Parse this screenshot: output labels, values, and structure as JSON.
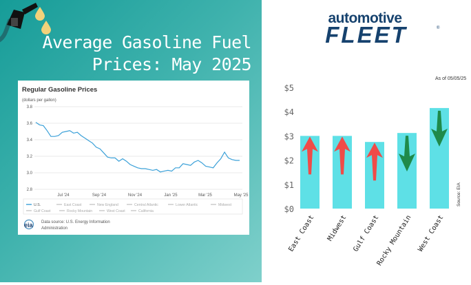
{
  "headline": {
    "line1": "Average Gasoline Fuel",
    "line2": "Prices: May 2025"
  },
  "logo": {
    "word1": "automotive",
    "word2": "FLEET",
    "mark": "®"
  },
  "colors": {
    "teal": "#1aa39f",
    "eia_line": "#3aa0d8",
    "bar": "#5ee0e6",
    "up": "#f04b48",
    "down": "#1f8a4a",
    "logo_navy": "#16426e"
  },
  "chart_data": [
    {
      "type": "line",
      "title": "Regular Gasoline Prices",
      "subtitle": "(dollars per gallon)",
      "xlabel": "",
      "ylabel": "",
      "ylim": [
        2.8,
        3.8
      ],
      "yticks": [
        "3.8",
        "3.6",
        "3.4",
        "3.2",
        "3.0",
        "2.8"
      ],
      "xticks": [
        "Jul '24",
        "Sep '24",
        "Nov '24",
        "Jan '25",
        "Mar '25",
        "May '25"
      ],
      "grid": true,
      "legend": [
        "U.S.",
        "East Coast",
        "New England",
        "Central Atlantic",
        "Lower Atlantic",
        "Midwest",
        "Gulf Coast",
        "Rocky Mountain",
        "West Coast",
        "California"
      ],
      "source_line1": "Data source: U.S. Energy Information",
      "source_line2": "Administration",
      "source_logo": "eia",
      "series": [
        {
          "name": "U.S.",
          "values": [
            3.61,
            3.58,
            3.57,
            3.51,
            3.44,
            3.44,
            3.45,
            3.49,
            3.5,
            3.51,
            3.48,
            3.49,
            3.45,
            3.42,
            3.39,
            3.36,
            3.31,
            3.29,
            3.24,
            3.19,
            3.18,
            3.18,
            3.14,
            3.17,
            3.14,
            3.1,
            3.08,
            3.06,
            3.05,
            3.05,
            3.04,
            3.03,
            3.04,
            3.01,
            3.02,
            3.03,
            3.02,
            3.06,
            3.06,
            3.11,
            3.1,
            3.09,
            3.13,
            3.15,
            3.12,
            3.08,
            3.07,
            3.06,
            3.12,
            3.17,
            3.25,
            3.18,
            3.16,
            3.15,
            3.15
          ]
        }
      ]
    },
    {
      "type": "bar",
      "title": "",
      "annotation": "As of 05/05/25",
      "source": "Source: EIA",
      "ylim": [
        0,
        5
      ],
      "yticks": [
        "$0",
        "$1",
        "$2",
        "$3",
        "$4",
        "$5"
      ],
      "categories": [
        "East Coast",
        "Midwest",
        "Gulf Coast",
        "Rocky Mountain",
        "West Coast"
      ],
      "values": [
        3.0,
        3.0,
        2.75,
        3.12,
        4.15
      ],
      "trend": [
        "up",
        "up",
        "up",
        "down",
        "down"
      ]
    }
  ]
}
